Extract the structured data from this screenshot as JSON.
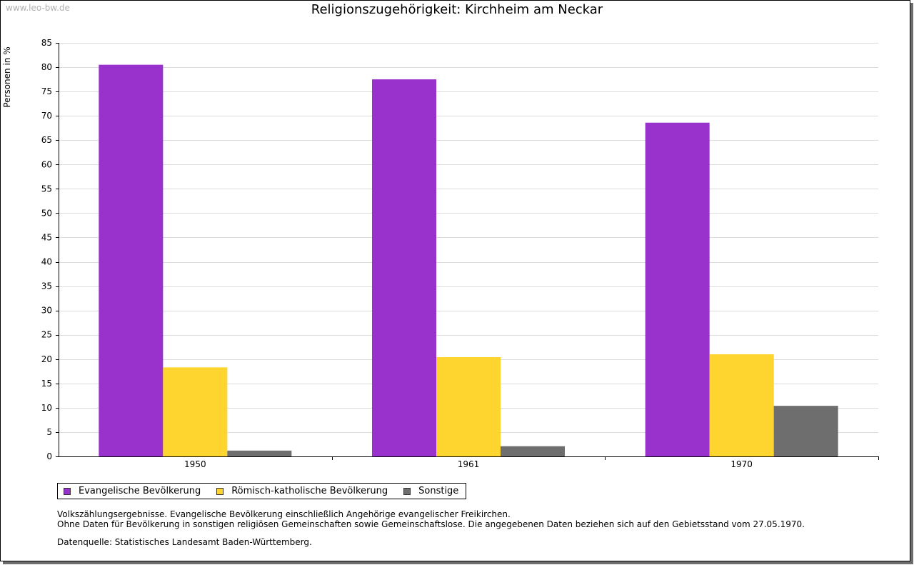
{
  "watermark": "www.leo-bw.de",
  "notes": {
    "line1": "Volkszählungsergebnisse. Evangelische Bevölkerung einschließlich Angehörige evangelischer Freikirchen.",
    "line2": "Ohne Daten für Bevölkerung in sonstigen religiösen Gemeinschaften sowie Gemeinschaftslose. Die angegebenen Daten beziehen sich auf den Gebietsstand vom 27.05.1970.",
    "source": "Datenquelle: Statistisches Landesamt Baden-Württemberg."
  },
  "chart_data": {
    "type": "bar",
    "title": "Religionszugehörigkeit: Kirchheim am Neckar",
    "xlabel": "",
    "ylabel": "Personen in %",
    "ylim": [
      0,
      85
    ],
    "ytick_step": 5,
    "grid": true,
    "legend_position": "bottom-left",
    "categories": [
      "1950",
      "1961",
      "1970"
    ],
    "series": [
      {
        "name": "Evangelische Bevölkerung",
        "color": "#9932cc",
        "values": [
          80.5,
          77.5,
          68.6
        ]
      },
      {
        "name": "Römisch-katholische Bevölkerung",
        "color": "#fdd52e",
        "values": [
          18.3,
          20.4,
          21.0
        ]
      },
      {
        "name": "Sonstige",
        "color": "#6e6e6e",
        "values": [
          1.2,
          2.1,
          10.4
        ]
      }
    ]
  }
}
